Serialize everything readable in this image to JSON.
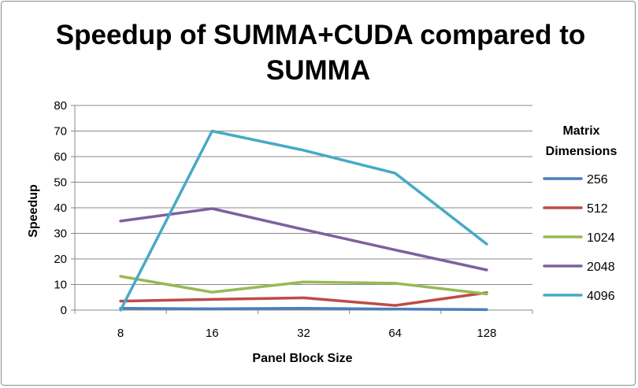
{
  "chart_data": {
    "type": "line",
    "title_lines": [
      "Speedup of SUMMA+CUDA compared to",
      "SUMMA"
    ],
    "xlabel": "Panel Block Size",
    "ylabel": "Speedup",
    "categories": [
      "8",
      "16",
      "32",
      "64",
      "128"
    ],
    "ylim": [
      0,
      80
    ],
    "yticks": [
      0,
      10,
      20,
      30,
      40,
      50,
      60,
      70,
      80
    ],
    "grid": true,
    "legend_title_lines": [
      "Matrix",
      "Dimensions"
    ],
    "legend_position": "right",
    "series": [
      {
        "name": "256",
        "color": "#4a7ebb",
        "values": [
          0.7,
          0.5,
          0.7,
          0.4,
          0.2
        ]
      },
      {
        "name": "512",
        "color": "#be4b48",
        "values": [
          3.5,
          4.2,
          4.8,
          1.8,
          6.8
        ]
      },
      {
        "name": "1024",
        "color": "#98b954",
        "values": [
          13.2,
          7.0,
          11.0,
          10.5,
          6.3
        ]
      },
      {
        "name": "2048",
        "color": "#7d60a0",
        "values": [
          34.8,
          39.7,
          31.5,
          23.5,
          15.7
        ]
      },
      {
        "name": "4096",
        "color": "#46aac5",
        "values": [
          0.0,
          70.0,
          62.5,
          53.5,
          25.8
        ]
      }
    ]
  }
}
